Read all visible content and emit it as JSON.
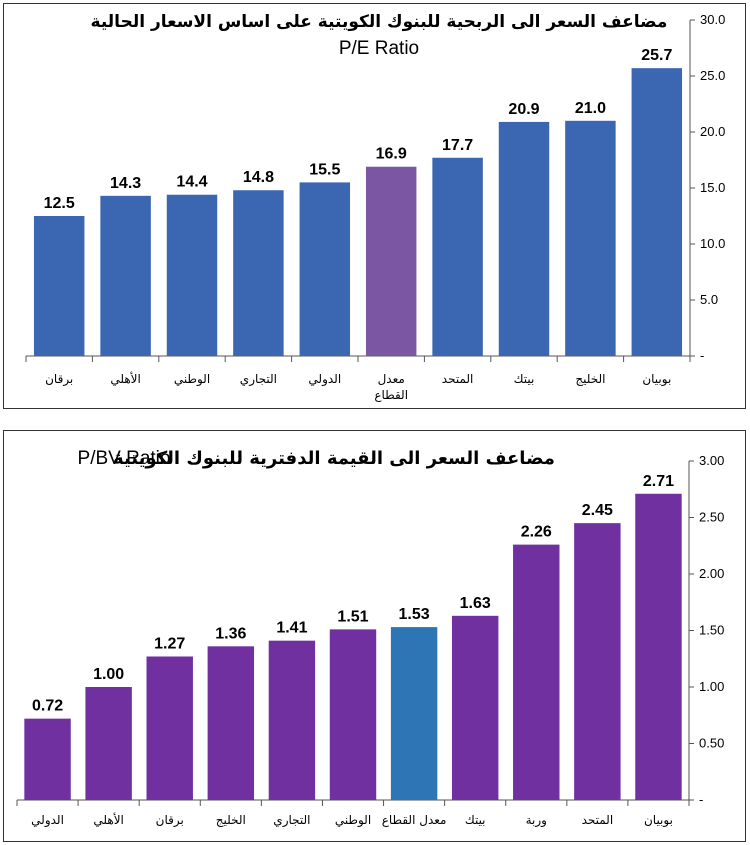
{
  "chart_data": [
    {
      "type": "bar",
      "title": "مضاعف السعر الى الربحية للبنوك الكويتية على اساس الاسعار الحالية",
      "subtitle": "P/E Ratio",
      "categories": [
        "برقان",
        "الأهلي",
        "الوطني",
        "التجاري",
        "الدولي",
        "معدل القطاع",
        "المتحد",
        "بيتك",
        "الخليج",
        "بوبيان"
      ],
      "values": [
        12.5,
        14.3,
        14.4,
        14.8,
        15.5,
        16.9,
        17.7,
        20.9,
        21.0,
        25.7
      ],
      "value_labels": [
        "12.5",
        "14.3",
        "14.4",
        "14.8",
        "15.5",
        "16.9",
        "17.7",
        "20.9",
        "21.0",
        "25.7"
      ],
      "ylim": [
        0,
        30
      ],
      "yticks": [
        0,
        5,
        10,
        15,
        20,
        25,
        30
      ],
      "ytick_labels": [
        "-",
        "5.0",
        "10.0",
        "15.0",
        "20.0",
        "25.0",
        "30.0"
      ],
      "y_axis_side": "right",
      "highlight_index": 5,
      "colors": {
        "bar": "#3B67B2",
        "highlight": "#7B56A3"
      },
      "grid": false,
      "legend": "none"
    },
    {
      "type": "bar",
      "title": "مضاعف السعر الى القيمة الدفترية للبنوك الكويتية",
      "subtitle": "P/BV Ratio",
      "categories": [
        "الدولي",
        "الأهلي",
        "برقان",
        "الخليج",
        "التجاري",
        "الوطني",
        "معدل القطاع",
        "بيتك",
        "وربة",
        "المتحد",
        "بوبيان"
      ],
      "values": [
        0.72,
        1.0,
        1.27,
        1.36,
        1.41,
        1.51,
        1.53,
        1.63,
        2.26,
        2.45,
        2.71
      ],
      "value_labels": [
        "0.72",
        "1.00",
        "1.27",
        "1.36",
        "1.41",
        "1.51",
        "1.53",
        "1.63",
        "2.26",
        "2.45",
        "2.71"
      ],
      "ylim": [
        0,
        3
      ],
      "yticks": [
        0,
        0.5,
        1,
        1.5,
        2,
        2.5,
        3
      ],
      "ytick_labels": [
        "-",
        "0.50",
        "1.00",
        "1.50",
        "2.00",
        "2.50",
        "3.00"
      ],
      "y_axis_side": "right",
      "highlight_index": 6,
      "colors": {
        "bar": "#7030A0",
        "highlight": "#2E75B6"
      },
      "grid": false,
      "legend": "none"
    }
  ]
}
